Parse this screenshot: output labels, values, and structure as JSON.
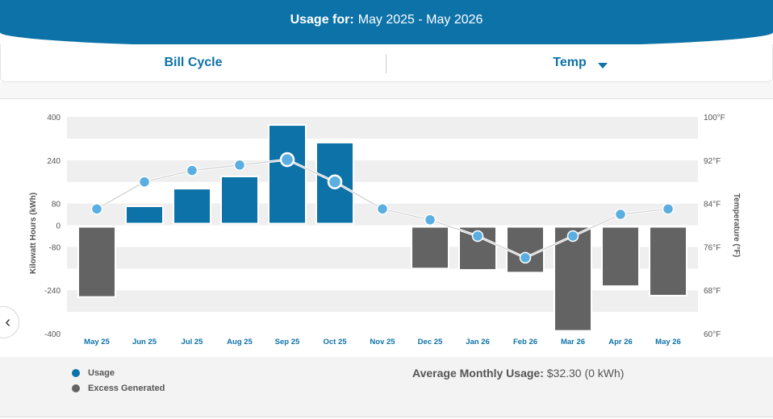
{
  "header": {
    "title_label": "Usage for:",
    "range": "May 2025 - May 2026"
  },
  "selectors": {
    "left": "Bill Cycle",
    "right": "Temp"
  },
  "colors": {
    "usage": "#0c72a8",
    "excess": "#636363",
    "temp_point": "#5aaee0"
  },
  "icons": {
    "prev": "chevron-left-icon",
    "dropdown": "caret-down-icon"
  },
  "legend": {
    "usage": "Usage",
    "excess": "Excess Generated"
  },
  "summary": {
    "label": "Average Monthly Usage:",
    "value": "$32.30 (0 kWh)"
  },
  "chart_data": {
    "type": "bar",
    "categories": [
      "May 25",
      "Jun 25",
      "Jul 25",
      "Aug 25",
      "Sep 25",
      "Oct 25",
      "Nov 25",
      "Dec 25",
      "Jan 26",
      "Feb 26",
      "Mar 26",
      "Apr 26",
      "May 26"
    ],
    "series": [
      {
        "name": "Usage",
        "axis": "left",
        "values": [
          0,
          70,
          135,
          180,
          370,
          305,
          0,
          0,
          0,
          0,
          0,
          0,
          0
        ]
      },
      {
        "name": "Excess Generated",
        "axis": "left",
        "values": [
          -265,
          0,
          0,
          0,
          0,
          0,
          -5,
          -160,
          -165,
          -175,
          -390,
          -225,
          -260
        ]
      },
      {
        "axis": "right",
        "type": "line",
        "values": [
          83,
          88,
          90.1,
          91.1,
          92.1,
          88,
          83,
          81,
          78,
          74,
          78,
          82,
          83
        ]
      }
    ],
    "ylabel": "Kilowatt Hours (kWh)",
    "y2label": "Temperature (°F)",
    "ylim": [
      -400,
      400
    ],
    "yticks": [
      400,
      240,
      80,
      0,
      -80,
      -240,
      -400
    ],
    "y2lim": [
      60,
      100
    ],
    "y2ticks": [
      "100°F",
      "92°F",
      "84°F",
      "76°F",
      "68°F",
      "60°F"
    ],
    "grid": true,
    "legend_position": "bottom-left"
  }
}
